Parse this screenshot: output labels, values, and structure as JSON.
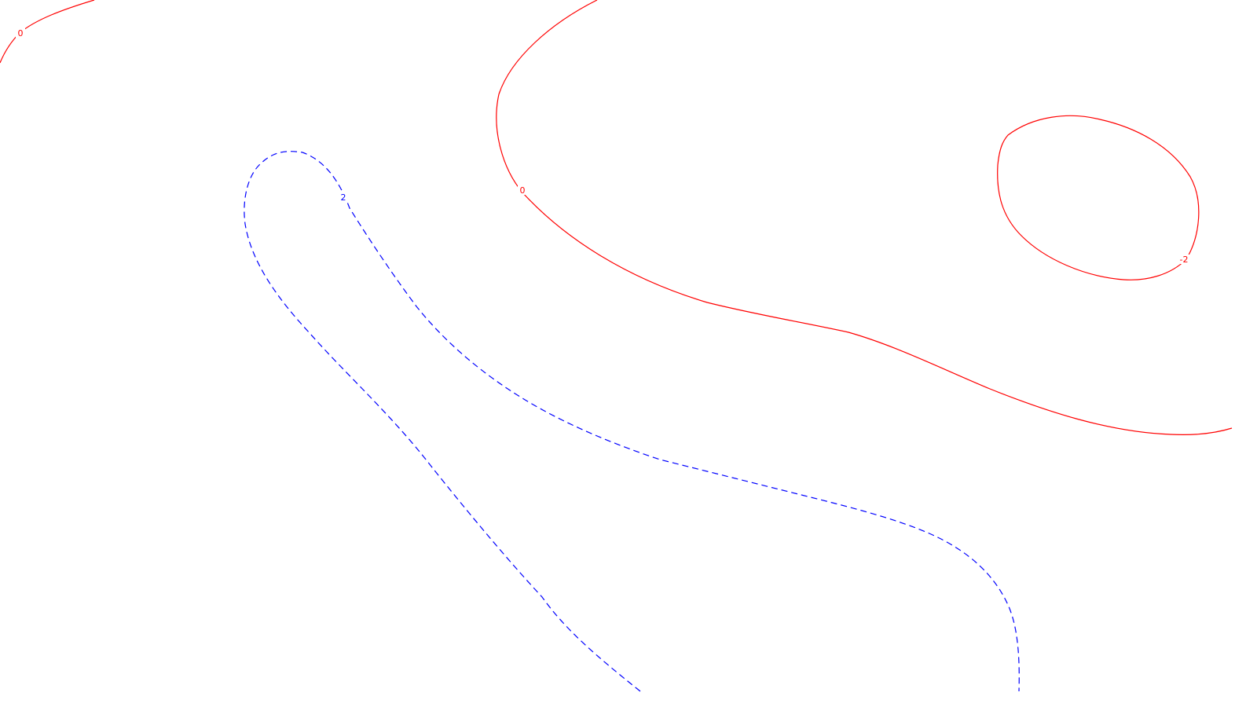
{
  "colors": {
    "background": "#ffffff",
    "zero_contour": "#ff0000",
    "positive_contour": "#0000ff"
  },
  "contours": [
    {
      "id": "contour-zero-topleft",
      "level": "0",
      "style": "solid",
      "color": "#ff0000"
    },
    {
      "id": "contour-zero-main",
      "level": "0",
      "style": "solid",
      "color": "#ff0000"
    },
    {
      "id": "contour-minus-two-loop",
      "level": "-2",
      "style": "solid",
      "color": "#ff0000"
    },
    {
      "id": "contour-two-dashed",
      "level": "2",
      "style": "dashed",
      "color": "#0000ff"
    }
  ],
  "labels": {
    "topleft_zero": "0",
    "main_zero": "0",
    "loop_minus_two": "-2",
    "dashed_two": "2"
  }
}
